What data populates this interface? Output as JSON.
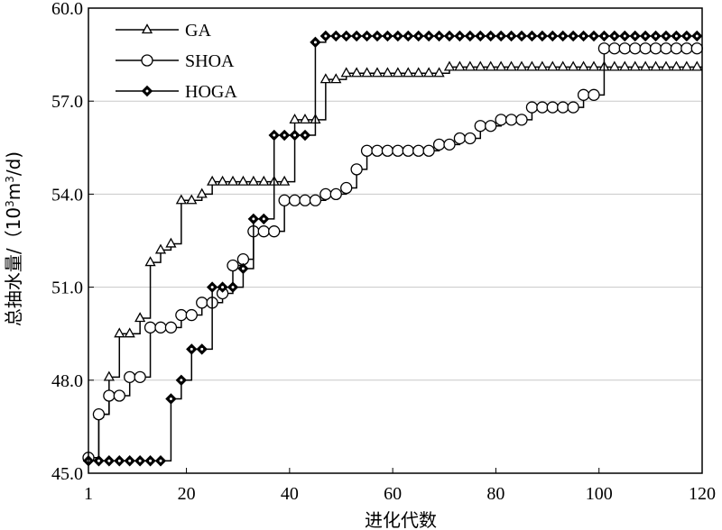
{
  "chart_data": {
    "type": "line",
    "xlabel": "进化代数",
    "ylabel_main": "总抽水量/（10",
    "ylabel_sup1": "3",
    "ylabel_mid": "m",
    "ylabel_sup2": "3",
    "ylabel_end": "/d)",
    "xlim": [
      1,
      120
    ],
    "ylim": [
      45.0,
      60.0
    ],
    "x_ticks": [
      1,
      20,
      40,
      60,
      80,
      100,
      120
    ],
    "x_tick_labels": [
      "1",
      "20",
      "40",
      "60",
      "80",
      "100",
      "120"
    ],
    "y_ticks": [
      45.0,
      48.0,
      51.0,
      54.0,
      57.0,
      60.0
    ],
    "y_tick_labels": [
      "45.0",
      "48.0",
      "51.0",
      "54.0",
      "57.0",
      "60.0"
    ],
    "grid": "horizontal",
    "legend_position": "top-left",
    "series": [
      {
        "name": "GA",
        "marker": "triangle",
        "points": [
          [
            1,
            45.5
          ],
          [
            3,
            46.9
          ],
          [
            5,
            48.1
          ],
          [
            7,
            49.5
          ],
          [
            9,
            49.5
          ],
          [
            11,
            50.0
          ],
          [
            13,
            51.8
          ],
          [
            15,
            52.2
          ],
          [
            17,
            52.4
          ],
          [
            19,
            53.8
          ],
          [
            21,
            53.8
          ],
          [
            23,
            54.0
          ],
          [
            25,
            54.4
          ],
          [
            27,
            54.4
          ],
          [
            29,
            54.4
          ],
          [
            31,
            54.4
          ],
          [
            33,
            54.4
          ],
          [
            35,
            54.4
          ],
          [
            37,
            54.4
          ],
          [
            39,
            54.4
          ],
          [
            41,
            56.4
          ],
          [
            43,
            56.4
          ],
          [
            45,
            56.4
          ],
          [
            47,
            57.7
          ],
          [
            49,
            57.7
          ],
          [
            51,
            57.9
          ],
          [
            53,
            57.9
          ],
          [
            55,
            57.9
          ],
          [
            57,
            57.9
          ],
          [
            59,
            57.9
          ],
          [
            61,
            57.9
          ],
          [
            63,
            57.9
          ],
          [
            65,
            57.9
          ],
          [
            67,
            57.9
          ],
          [
            69,
            57.9
          ],
          [
            71,
            58.1
          ],
          [
            73,
            58.1
          ],
          [
            75,
            58.1
          ],
          [
            77,
            58.1
          ],
          [
            79,
            58.1
          ],
          [
            81,
            58.1
          ],
          [
            83,
            58.1
          ],
          [
            85,
            58.1
          ],
          [
            87,
            58.1
          ],
          [
            89,
            58.1
          ],
          [
            91,
            58.1
          ],
          [
            93,
            58.1
          ],
          [
            95,
            58.1
          ],
          [
            97,
            58.1
          ],
          [
            99,
            58.1
          ],
          [
            101,
            58.1
          ],
          [
            103,
            58.1
          ],
          [
            105,
            58.1
          ],
          [
            107,
            58.1
          ],
          [
            109,
            58.1
          ],
          [
            111,
            58.1
          ],
          [
            113,
            58.1
          ],
          [
            115,
            58.1
          ],
          [
            117,
            58.1
          ],
          [
            119,
            58.1
          ]
        ]
      },
      {
        "name": "SHOA",
        "marker": "circle",
        "points": [
          [
            1,
            45.5
          ],
          [
            3,
            46.9
          ],
          [
            5,
            47.5
          ],
          [
            7,
            47.5
          ],
          [
            9,
            48.1
          ],
          [
            11,
            48.1
          ],
          [
            13,
            49.7
          ],
          [
            15,
            49.7
          ],
          [
            17,
            49.7
          ],
          [
            19,
            50.1
          ],
          [
            21,
            50.1
          ],
          [
            23,
            50.5
          ],
          [
            25,
            50.5
          ],
          [
            27,
            50.8
          ],
          [
            29,
            51.7
          ],
          [
            31,
            51.9
          ],
          [
            33,
            52.8
          ],
          [
            35,
            52.8
          ],
          [
            37,
            52.8
          ],
          [
            39,
            53.8
          ],
          [
            41,
            53.8
          ],
          [
            43,
            53.8
          ],
          [
            45,
            53.8
          ],
          [
            47,
            54.0
          ],
          [
            49,
            54.0
          ],
          [
            51,
            54.2
          ],
          [
            53,
            54.8
          ],
          [
            55,
            55.4
          ],
          [
            57,
            55.4
          ],
          [
            59,
            55.4
          ],
          [
            61,
            55.4
          ],
          [
            63,
            55.4
          ],
          [
            65,
            55.4
          ],
          [
            67,
            55.4
          ],
          [
            69,
            55.6
          ],
          [
            71,
            55.6
          ],
          [
            73,
            55.8
          ],
          [
            75,
            55.8
          ],
          [
            77,
            56.2
          ],
          [
            79,
            56.2
          ],
          [
            81,
            56.4
          ],
          [
            83,
            56.4
          ],
          [
            85,
            56.4
          ],
          [
            87,
            56.8
          ],
          [
            89,
            56.8
          ],
          [
            91,
            56.8
          ],
          [
            93,
            56.8
          ],
          [
            95,
            56.8
          ],
          [
            97,
            57.2
          ],
          [
            99,
            57.2
          ],
          [
            101,
            58.7
          ],
          [
            103,
            58.7
          ],
          [
            105,
            58.7
          ],
          [
            107,
            58.7
          ],
          [
            109,
            58.7
          ],
          [
            111,
            58.7
          ],
          [
            113,
            58.7
          ],
          [
            115,
            58.7
          ],
          [
            117,
            58.7
          ],
          [
            119,
            58.7
          ]
        ]
      },
      {
        "name": "HOGA",
        "marker": "diamond",
        "points": [
          [
            1,
            45.4
          ],
          [
            3,
            45.4
          ],
          [
            5,
            45.4
          ],
          [
            7,
            45.4
          ],
          [
            9,
            45.4
          ],
          [
            11,
            45.4
          ],
          [
            13,
            45.4
          ],
          [
            15,
            45.4
          ],
          [
            17,
            47.4
          ],
          [
            19,
            48.0
          ],
          [
            21,
            49.0
          ],
          [
            23,
            49.0
          ],
          [
            25,
            51.0
          ],
          [
            27,
            51.0
          ],
          [
            29,
            51.0
          ],
          [
            31,
            51.6
          ],
          [
            33,
            53.2
          ],
          [
            35,
            53.2
          ],
          [
            37,
            55.9
          ],
          [
            39,
            55.9
          ],
          [
            41,
            55.9
          ],
          [
            43,
            55.9
          ],
          [
            45,
            58.9
          ],
          [
            47,
            59.1
          ],
          [
            49,
            59.1
          ],
          [
            51,
            59.1
          ],
          [
            53,
            59.1
          ],
          [
            55,
            59.1
          ],
          [
            57,
            59.1
          ],
          [
            59,
            59.1
          ],
          [
            61,
            59.1
          ],
          [
            63,
            59.1
          ],
          [
            65,
            59.1
          ],
          [
            67,
            59.1
          ],
          [
            69,
            59.1
          ],
          [
            71,
            59.1
          ],
          [
            73,
            59.1
          ],
          [
            75,
            59.1
          ],
          [
            77,
            59.1
          ],
          [
            79,
            59.1
          ],
          [
            81,
            59.1
          ],
          [
            83,
            59.1
          ],
          [
            85,
            59.1
          ],
          [
            87,
            59.1
          ],
          [
            89,
            59.1
          ],
          [
            91,
            59.1
          ],
          [
            93,
            59.1
          ],
          [
            95,
            59.1
          ],
          [
            97,
            59.1
          ],
          [
            99,
            59.1
          ],
          [
            101,
            59.1
          ],
          [
            103,
            59.1
          ],
          [
            105,
            59.1
          ],
          [
            107,
            59.1
          ],
          [
            109,
            59.1
          ],
          [
            111,
            59.1
          ],
          [
            113,
            59.1
          ],
          [
            115,
            59.1
          ],
          [
            117,
            59.1
          ],
          [
            119,
            59.1
          ]
        ]
      }
    ]
  }
}
